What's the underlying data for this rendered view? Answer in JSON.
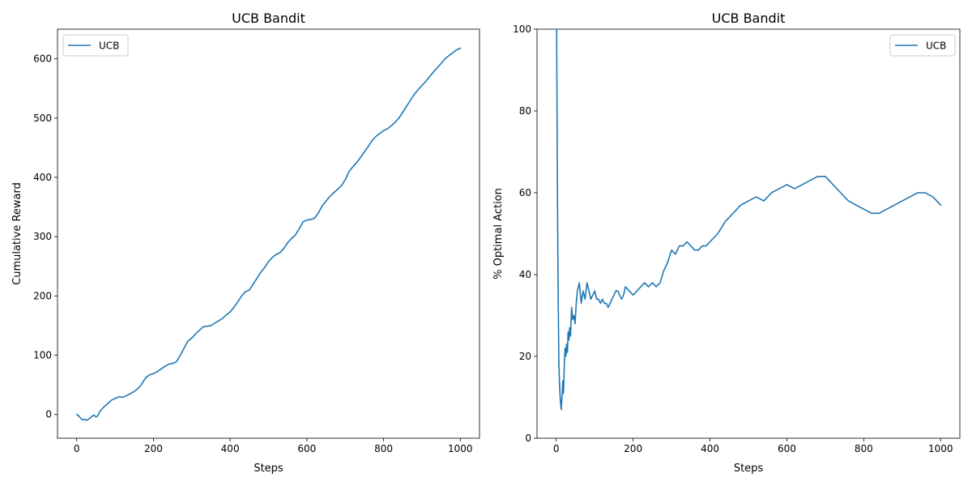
{
  "colors": {
    "series": "#1f77b4"
  },
  "chart_data": [
    {
      "type": "line",
      "title": "UCB Bandit",
      "xlabel": "Steps",
      "ylabel": "Cumulative Reward",
      "xlim": [
        -50,
        1050
      ],
      "ylim": [
        -40,
        650
      ],
      "xticks": [
        0,
        200,
        400,
        600,
        800,
        1000
      ],
      "yticks": [
        0,
        100,
        200,
        300,
        400,
        500,
        600
      ],
      "grid": false,
      "legend": "upper-left",
      "series": [
        {
          "name": "UCB",
          "x": [
            0,
            5,
            10,
            15,
            20,
            25,
            30,
            35,
            40,
            45,
            50,
            55,
            60,
            70,
            80,
            90,
            100,
            110,
            120,
            130,
            140,
            150,
            160,
            170,
            180,
            190,
            200,
            210,
            220,
            230,
            240,
            250,
            260,
            270,
            280,
            290,
            300,
            310,
            320,
            330,
            340,
            350,
            360,
            370,
            380,
            390,
            400,
            410,
            420,
            430,
            440,
            450,
            460,
            470,
            480,
            490,
            500,
            510,
            520,
            530,
            540,
            550,
            560,
            570,
            580,
            590,
            600,
            610,
            620,
            630,
            640,
            650,
            660,
            670,
            680,
            690,
            700,
            710,
            720,
            730,
            740,
            750,
            760,
            770,
            780,
            790,
            800,
            810,
            820,
            830,
            840,
            850,
            860,
            870,
            880,
            890,
            900,
            910,
            920,
            930,
            940,
            950,
            960,
            970,
            980,
            990,
            1000
          ],
          "y": [
            0,
            -2,
            -6,
            -9,
            -8,
            -10,
            -8,
            -6,
            -3,
            -1,
            -4,
            -2,
            5,
            12,
            18,
            24,
            27,
            30,
            29,
            32,
            35,
            39,
            44,
            52,
            62,
            67,
            69,
            72,
            77,
            81,
            85,
            86,
            89,
            100,
            112,
            124,
            129,
            136,
            142,
            148,
            149,
            150,
            154,
            158,
            162,
            168,
            173,
            181,
            190,
            200,
            207,
            210,
            220,
            230,
            240,
            248,
            258,
            265,
            270,
            273,
            280,
            290,
            297,
            303,
            313,
            325,
            328,
            329,
            331,
            340,
            352,
            360,
            368,
            374,
            380,
            386,
            396,
            410,
            418,
            425,
            434,
            443,
            452,
            462,
            469,
            474,
            479,
            482,
            487,
            493,
            500,
            510,
            520,
            530,
            540,
            548,
            555,
            562,
            570,
            578,
            585,
            592,
            600,
            605,
            610,
            615,
            618
          ]
        }
      ]
    },
    {
      "type": "line",
      "title": "UCB Bandit",
      "xlabel": "Steps",
      "ylabel": "% Optimal Action",
      "xlim": [
        -50,
        1050
      ],
      "ylim": [
        0,
        100
      ],
      "xticks": [
        0,
        200,
        400,
        600,
        800,
        1000
      ],
      "yticks": [
        0,
        20,
        40,
        60,
        80,
        100
      ],
      "grid": false,
      "legend": "upper-right",
      "series": [
        {
          "name": "UCB",
          "x": [
            1,
            3,
            5,
            7,
            9,
            11,
            13,
            15,
            17,
            19,
            21,
            23,
            25,
            27,
            29,
            31,
            33,
            35,
            37,
            40,
            43,
            46,
            49,
            52,
            55,
            60,
            65,
            70,
            75,
            80,
            85,
            90,
            95,
            100,
            105,
            110,
            115,
            120,
            125,
            130,
            135,
            140,
            145,
            150,
            155,
            160,
            165,
            170,
            175,
            180,
            190,
            200,
            210,
            220,
            230,
            240,
            250,
            260,
            270,
            280,
            290,
            300,
            310,
            320,
            330,
            340,
            350,
            360,
            370,
            380,
            390,
            400,
            420,
            440,
            460,
            480,
            500,
            520,
            540,
            560,
            580,
            600,
            620,
            640,
            660,
            680,
            690,
            700,
            720,
            740,
            760,
            780,
            800,
            820,
            840,
            860,
            880,
            900,
            920,
            940,
            950,
            960,
            980,
            1000
          ],
          "y": [
            100,
            60,
            35,
            18,
            12,
            9,
            7,
            10,
            14,
            11,
            18,
            22,
            20,
            23,
            21,
            26,
            24,
            27,
            25,
            32,
            29,
            30,
            28,
            33,
            36,
            38,
            33,
            36,
            34,
            38,
            36,
            34,
            35,
            36,
            34,
            34,
            33,
            34,
            33,
            33,
            32,
            33,
            34,
            35,
            36,
            36,
            35,
            34,
            35,
            37,
            36,
            35,
            36,
            37,
            38,
            37,
            38,
            37,
            38,
            41,
            43,
            46,
            45,
            47,
            47,
            48,
            47,
            46,
            46,
            47,
            47,
            48,
            50,
            53,
            55,
            57,
            58,
            59,
            58,
            60,
            61,
            62,
            61,
            62,
            63,
            64,
            64,
            64,
            62,
            60,
            58,
            57,
            56,
            55,
            55,
            56,
            57,
            58,
            59,
            60,
            60,
            60,
            59,
            57
          ]
        }
      ]
    }
  ]
}
